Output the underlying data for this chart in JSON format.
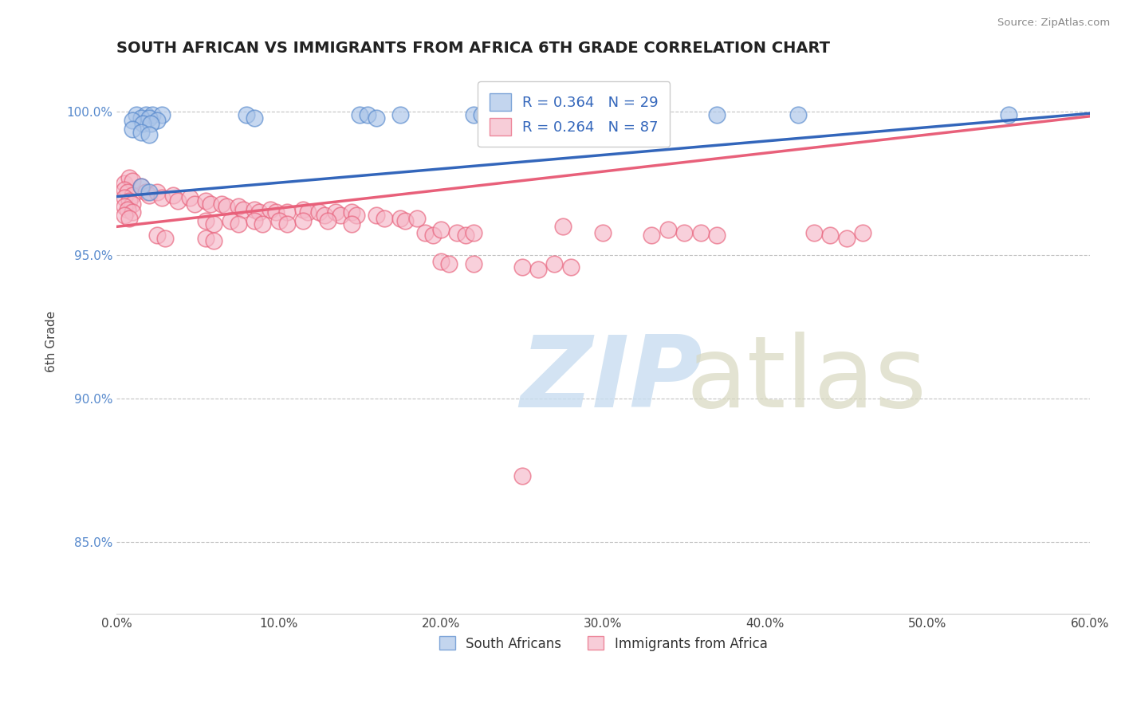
{
  "title": "SOUTH AFRICAN VS IMMIGRANTS FROM AFRICA 6TH GRADE CORRELATION CHART",
  "source": "Source: ZipAtlas.com",
  "xlabel": "",
  "ylabel": "6th Grade",
  "xlim": [
    0.0,
    0.6
  ],
  "ylim": [
    0.825,
    1.015
  ],
  "yticks": [
    0.85,
    0.9,
    0.95,
    1.0
  ],
  "ytick_labels": [
    "85.0%",
    "90.0%",
    "95.0%",
    "100.0%"
  ],
  "xticks": [
    0.0,
    0.1,
    0.2,
    0.3,
    0.4,
    0.5,
    0.6
  ],
  "xtick_labels": [
    "0.0%",
    "10.0%",
    "20.0%",
    "30.0%",
    "40.0%",
    "50.0%",
    "60.0%"
  ],
  "blue_R": 0.364,
  "blue_N": 29,
  "pink_R": 0.264,
  "pink_N": 87,
  "blue_color": "#aac4e8",
  "pink_color": "#f5b8c8",
  "blue_edge_color": "#5588cc",
  "pink_edge_color": "#e8607a",
  "blue_line_color": "#3366BB",
  "pink_line_color": "#e8607a",
  "legend_label_blue": "South Africans",
  "legend_label_pink": "Immigrants from Africa",
  "blue_scatter": [
    [
      0.012,
      0.999
    ],
    [
      0.018,
      0.999
    ],
    [
      0.022,
      0.999
    ],
    [
      0.028,
      0.999
    ],
    [
      0.015,
      0.998
    ],
    [
      0.02,
      0.998
    ],
    [
      0.025,
      0.997
    ],
    [
      0.01,
      0.997
    ],
    [
      0.016,
      0.996
    ],
    [
      0.021,
      0.996
    ],
    [
      0.01,
      0.994
    ],
    [
      0.015,
      0.993
    ],
    [
      0.02,
      0.992
    ],
    [
      0.08,
      0.999
    ],
    [
      0.085,
      0.998
    ],
    [
      0.15,
      0.999
    ],
    [
      0.155,
      0.999
    ],
    [
      0.16,
      0.998
    ],
    [
      0.175,
      0.999
    ],
    [
      0.22,
      0.999
    ],
    [
      0.225,
      0.999
    ],
    [
      0.27,
      0.999
    ],
    [
      0.33,
      0.999
    ],
    [
      0.335,
      0.999
    ],
    [
      0.37,
      0.999
    ],
    [
      0.42,
      0.999
    ],
    [
      0.015,
      0.974
    ],
    [
      0.02,
      0.972
    ],
    [
      0.55,
      0.999
    ]
  ],
  "pink_scatter": [
    [
      0.005,
      0.975
    ],
    [
      0.008,
      0.977
    ],
    [
      0.01,
      0.976
    ],
    [
      0.005,
      0.973
    ],
    [
      0.007,
      0.972
    ],
    [
      0.01,
      0.971
    ],
    [
      0.005,
      0.97
    ],
    [
      0.008,
      0.969
    ],
    [
      0.01,
      0.968
    ],
    [
      0.005,
      0.967
    ],
    [
      0.007,
      0.966
    ],
    [
      0.01,
      0.965
    ],
    [
      0.005,
      0.964
    ],
    [
      0.008,
      0.963
    ],
    [
      0.015,
      0.974
    ],
    [
      0.018,
      0.972
    ],
    [
      0.02,
      0.971
    ],
    [
      0.025,
      0.972
    ],
    [
      0.028,
      0.97
    ],
    [
      0.035,
      0.971
    ],
    [
      0.038,
      0.969
    ],
    [
      0.045,
      0.97
    ],
    [
      0.048,
      0.968
    ],
    [
      0.055,
      0.969
    ],
    [
      0.058,
      0.968
    ],
    [
      0.065,
      0.968
    ],
    [
      0.068,
      0.967
    ],
    [
      0.075,
      0.967
    ],
    [
      0.078,
      0.966
    ],
    [
      0.085,
      0.966
    ],
    [
      0.088,
      0.965
    ],
    [
      0.095,
      0.966
    ],
    [
      0.098,
      0.965
    ],
    [
      0.105,
      0.965
    ],
    [
      0.115,
      0.966
    ],
    [
      0.118,
      0.965
    ],
    [
      0.125,
      0.965
    ],
    [
      0.128,
      0.964
    ],
    [
      0.135,
      0.965
    ],
    [
      0.138,
      0.964
    ],
    [
      0.145,
      0.965
    ],
    [
      0.148,
      0.964
    ],
    [
      0.16,
      0.964
    ],
    [
      0.165,
      0.963
    ],
    [
      0.175,
      0.963
    ],
    [
      0.178,
      0.962
    ],
    [
      0.185,
      0.963
    ],
    [
      0.055,
      0.962
    ],
    [
      0.06,
      0.961
    ],
    [
      0.07,
      0.962
    ],
    [
      0.075,
      0.961
    ],
    [
      0.085,
      0.962
    ],
    [
      0.09,
      0.961
    ],
    [
      0.1,
      0.962
    ],
    [
      0.105,
      0.961
    ],
    [
      0.115,
      0.962
    ],
    [
      0.13,
      0.962
    ],
    [
      0.145,
      0.961
    ],
    [
      0.025,
      0.957
    ],
    [
      0.03,
      0.956
    ],
    [
      0.055,
      0.956
    ],
    [
      0.06,
      0.955
    ],
    [
      0.19,
      0.958
    ],
    [
      0.195,
      0.957
    ],
    [
      0.2,
      0.959
    ],
    [
      0.21,
      0.958
    ],
    [
      0.215,
      0.957
    ],
    [
      0.22,
      0.958
    ],
    [
      0.275,
      0.96
    ],
    [
      0.3,
      0.958
    ],
    [
      0.33,
      0.957
    ],
    [
      0.34,
      0.959
    ],
    [
      0.35,
      0.958
    ],
    [
      0.36,
      0.958
    ],
    [
      0.37,
      0.957
    ],
    [
      0.2,
      0.948
    ],
    [
      0.205,
      0.947
    ],
    [
      0.22,
      0.947
    ],
    [
      0.25,
      0.946
    ],
    [
      0.26,
      0.945
    ],
    [
      0.27,
      0.947
    ],
    [
      0.28,
      0.946
    ],
    [
      0.25,
      0.873
    ],
    [
      0.43,
      0.958
    ],
    [
      0.44,
      0.957
    ],
    [
      0.45,
      0.956
    ],
    [
      0.46,
      0.958
    ]
  ],
  "blue_trend_x": [
    0.0,
    0.6
  ],
  "blue_trend_y": [
    0.9705,
    0.9995
  ],
  "pink_trend_x": [
    0.0,
    0.6
  ],
  "pink_trend_y": [
    0.96,
    0.9985
  ]
}
